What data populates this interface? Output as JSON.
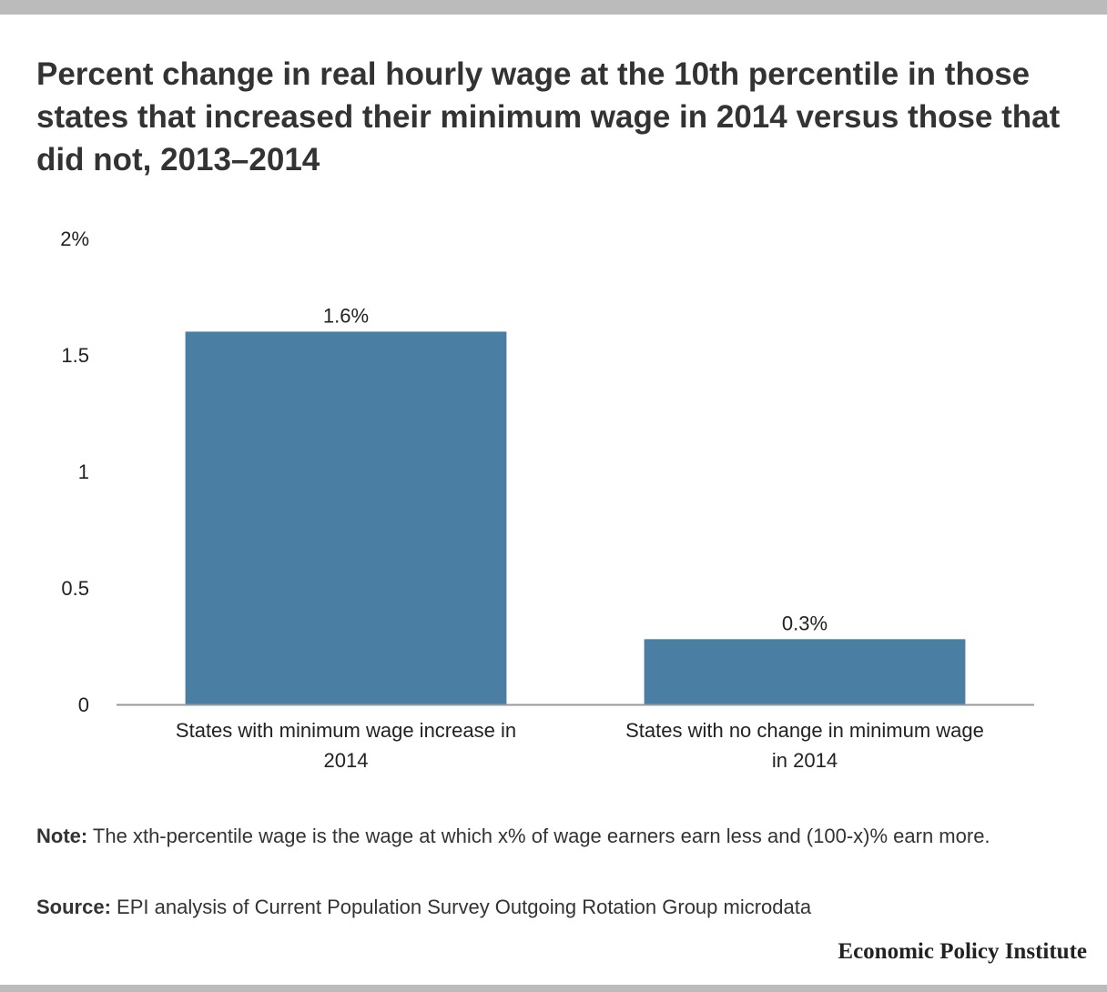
{
  "header": {
    "title": "Percent change in real hourly wage at the 10th percentile in those states that increased their minimum wage in 2014 versus those that did not, 2013–2014"
  },
  "chart_data": {
    "type": "bar",
    "categories": [
      "States with minimum wage increase in 2014",
      "States with no change in minimum wage in 2014"
    ],
    "category_lines": [
      [
        "States with minimum wage increase in",
        "2014"
      ],
      [
        "States with no change in minimum wage",
        "in 2014"
      ]
    ],
    "values": [
      1.6,
      0.28
    ],
    "data_labels": [
      "1.6%",
      "0.3%"
    ],
    "yticks": [
      0,
      0.5,
      1,
      1.5,
      2
    ],
    "ytick_labels": [
      "0",
      "0.5",
      "1",
      "1.5",
      "2%"
    ],
    "ylim": [
      0,
      2
    ],
    "grid": false,
    "bar_color": "#4a7fa3",
    "axis_color": "#999999"
  },
  "footer": {
    "note_label": "Note:",
    "note_text": " The xth-percentile wage is the wage at which x% of wage earners earn less and (100-x)% earn more.",
    "source_label": "Source:",
    "source_text": " EPI analysis of Current Population Survey Outgoing Rotation Group microdata",
    "brand": "Economic Policy Institute"
  }
}
